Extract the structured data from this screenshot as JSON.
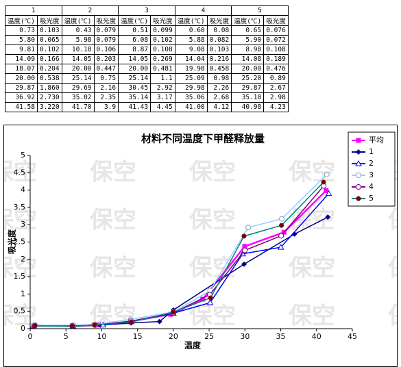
{
  "table": {
    "group_headers": [
      "1",
      "2",
      "3",
      "4",
      "5"
    ],
    "sub_headers": [
      "温度(℃)",
      "吸光度",
      "温度(℃)",
      "吸光度",
      "温度(℃)",
      "吸光度",
      "温度(℃)",
      "吸光度",
      "温度(℃)",
      "吸光度"
    ],
    "rows": [
      [
        "0.73",
        "0.103",
        "0.43",
        "0.079",
        "0.51",
        "0.099",
        "0.60",
        "0.08",
        "0.65",
        "0.076"
      ],
      [
        "5.80",
        "0.065",
        "5.98",
        "0.079",
        "6.08",
        "0.102",
        "5.88",
        "0.082",
        "5.90",
        "0.072"
      ],
      [
        "9.81",
        "0.102",
        "10.18",
        "0.106",
        "8.87",
        "0.108",
        "9.08",
        "0.103",
        "8.98",
        "0.108"
      ],
      [
        "14.09",
        "0.166",
        "14.05",
        "0.203",
        "14.05",
        "0.269",
        "14.04",
        "0.216",
        "14.08",
        "0.189"
      ],
      [
        "18.07",
        "0.204",
        "20.00",
        "0.447",
        "20.00",
        "0.481",
        "19.98",
        "0.458",
        "20.00",
        "0.476"
      ],
      [
        "20.00",
        "0.538",
        "25.14",
        "0.75",
        "25.14",
        "1.1",
        "25.09",
        "0.98",
        "25.20",
        "0.89"
      ],
      [
        "29.87",
        "1.860",
        "29.69",
        "2.16",
        "30.45",
        "2.92",
        "29.98",
        "2.26",
        "29.87",
        "2.67"
      ],
      [
        "36.92",
        "2.730",
        "35.02",
        "2.35",
        "35.14",
        "3.17",
        "35.06",
        "2.68",
        "35.10",
        "2.98"
      ],
      [
        "41.58",
        "3.220",
        "41.70",
        "3.9",
        "41.43",
        "4.45",
        "41.00",
        "4.12",
        "40.98",
        "4.23"
      ]
    ]
  },
  "watermark": "保空",
  "chart_data": {
    "type": "line",
    "title": "材料不同温度下甲醛释放量",
    "x_label": "温度",
    "y_label": "吸光度",
    "xlim": [
      0,
      45
    ],
    "xticks": [
      0,
      5,
      10,
      15,
      20,
      25,
      30,
      35,
      40,
      45
    ],
    "ylim": [
      0,
      5
    ],
    "yticks": [
      0,
      0.5,
      1,
      1.5,
      2,
      2.5,
      3,
      3.5,
      4,
      4.5,
      5
    ],
    "legend": "right",
    "series": [
      {
        "name": "平均",
        "color": "#ff00ff",
        "marker_color": "#ff00ff",
        "marker": "square",
        "x": [
          0.584,
          5.928,
          9.384,
          14.062,
          19.61,
          24.11,
          29.97,
          35.45,
          41.34
        ],
        "values": [
          0.0874,
          0.08,
          0.1054,
          0.2086,
          0.4132,
          0.8516,
          2.374,
          2.782,
          3.984
        ]
      },
      {
        "name": "1",
        "color": "#000080",
        "marker_color": "#000080",
        "marker": "diamond",
        "x": [
          0.73,
          5.8,
          9.81,
          14.09,
          18.07,
          20.0,
          29.87,
          36.92,
          41.58
        ],
        "values": [
          0.103,
          0.065,
          0.102,
          0.166,
          0.204,
          0.538,
          1.86,
          2.73,
          3.22
        ]
      },
      {
        "name": "2",
        "color": "#0000ff",
        "marker_color": "#0000ff",
        "marker": "triangle",
        "x": [
          0.43,
          5.98,
          10.18,
          14.05,
          20.0,
          25.14,
          29.69,
          35.02,
          41.7
        ],
        "values": [
          0.079,
          0.079,
          0.106,
          0.203,
          0.447,
          0.75,
          2.16,
          2.35,
          3.9
        ]
      },
      {
        "name": "3",
        "color": "#99ccff",
        "marker_color": "#7fa8c8",
        "marker": "circle-open",
        "x": [
          0.51,
          6.08,
          8.87,
          14.05,
          20.0,
          25.14,
          30.45,
          35.14,
          41.43
        ],
        "values": [
          0.099,
          0.102,
          0.108,
          0.269,
          0.481,
          1.1,
          2.92,
          3.17,
          4.45
        ]
      },
      {
        "name": "4",
        "color": "#800080",
        "marker_color": "#800080",
        "marker": "circle-open",
        "x": [
          0.6,
          5.88,
          9.08,
          14.04,
          19.98,
          25.09,
          29.98,
          35.06,
          41.0
        ],
        "values": [
          0.08,
          0.082,
          0.103,
          0.216,
          0.458,
          0.98,
          2.26,
          2.68,
          4.12
        ]
      },
      {
        "name": "5",
        "color": "#008080",
        "marker_color": "#800000",
        "marker": "circle",
        "x": [
          0.65,
          5.9,
          8.98,
          14.08,
          20.0,
          25.2,
          29.87,
          35.1,
          40.98
        ],
        "values": [
          0.076,
          0.072,
          0.108,
          0.189,
          0.476,
          0.89,
          2.67,
          2.98,
          4.23
        ]
      }
    ]
  }
}
